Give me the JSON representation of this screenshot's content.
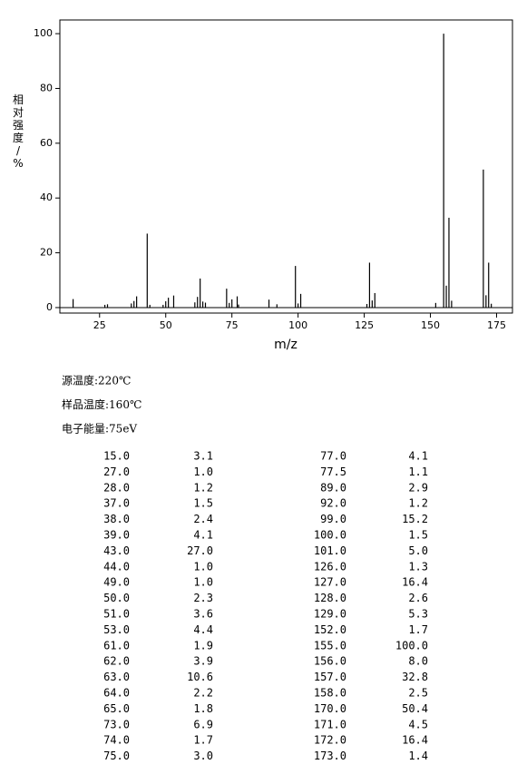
{
  "chart_data": {
    "type": "bar",
    "x_label": "m/z",
    "y_label": "相对强度/%",
    "x": [
      15,
      27,
      28,
      37,
      38,
      39,
      43,
      44,
      49,
      50,
      51,
      53,
      61,
      62,
      63,
      64,
      65,
      73,
      74,
      75,
      77,
      77.5,
      89,
      92,
      99,
      100,
      101,
      126,
      127,
      128,
      129,
      152,
      155,
      156,
      157,
      158,
      170,
      171,
      172,
      173
    ],
    "values": [
      3.1,
      1.0,
      1.2,
      1.5,
      2.4,
      4.1,
      27.0,
      1.0,
      1.0,
      2.3,
      3.6,
      4.4,
      1.9,
      3.9,
      10.6,
      2.2,
      1.8,
      6.9,
      1.7,
      3.0,
      4.1,
      1.1,
      2.9,
      1.2,
      15.2,
      1.5,
      5.0,
      1.3,
      16.4,
      2.6,
      5.3,
      1.7,
      100.0,
      8.0,
      32.8,
      2.5,
      50.4,
      4.5,
      16.4,
      1.4
    ],
    "color": "#000000",
    "xlim": [
      10,
      181
    ],
    "xticks": [
      25,
      50,
      75,
      100,
      125,
      150,
      175
    ],
    "ylim": [
      -2,
      105
    ],
    "yticks": [
      0,
      20,
      40,
      60,
      80,
      100
    ]
  },
  "info": [
    "源温度:220℃",
    "样品温度:160℃",
    "电子能量:75eV"
  ],
  "table": {
    "rows": [
      [
        "15.0",
        "3.1",
        "77.0",
        "4.1"
      ],
      [
        "27.0",
        "1.0",
        "77.5",
        "1.1"
      ],
      [
        "28.0",
        "1.2",
        "89.0",
        "2.9"
      ],
      [
        "37.0",
        "1.5",
        "92.0",
        "1.2"
      ],
      [
        "38.0",
        "2.4",
        "99.0",
        "15.2"
      ],
      [
        "39.0",
        "4.1",
        "100.0",
        "1.5"
      ],
      [
        "43.0",
        "27.0",
        "101.0",
        "5.0"
      ],
      [
        "44.0",
        "1.0",
        "126.0",
        "1.3"
      ],
      [
        "49.0",
        "1.0",
        "127.0",
        "16.4"
      ],
      [
        "50.0",
        "2.3",
        "128.0",
        "2.6"
      ],
      [
        "51.0",
        "3.6",
        "129.0",
        "5.3"
      ],
      [
        "53.0",
        "4.4",
        "152.0",
        "1.7"
      ],
      [
        "61.0",
        "1.9",
        "155.0",
        "100.0"
      ],
      [
        "62.0",
        "3.9",
        "156.0",
        "8.0"
      ],
      [
        "63.0",
        "10.6",
        "157.0",
        "32.8"
      ],
      [
        "64.0",
        "2.2",
        "158.0",
        "2.5"
      ],
      [
        "65.0",
        "1.8",
        "170.0",
        "50.4"
      ],
      [
        "73.0",
        "6.9",
        "171.0",
        "4.5"
      ],
      [
        "74.0",
        "1.7",
        "172.0",
        "16.4"
      ],
      [
        "75.0",
        "3.0",
        "173.0",
        "1.4"
      ]
    ]
  }
}
